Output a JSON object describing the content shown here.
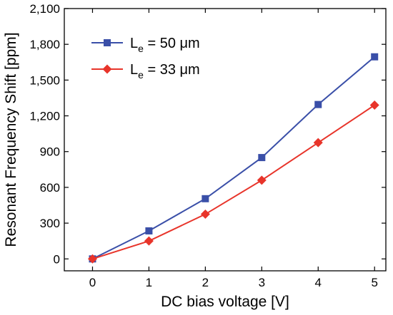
{
  "chart_data": {
    "type": "line",
    "xlabel": "DC bias voltage [V]",
    "ylabel": "Resonant Frequency Shift [ppm]",
    "xlim": [
      -0.5,
      5.2
    ],
    "ylim": [
      -100,
      2100
    ],
    "x_ticks": [
      0,
      1,
      2,
      3,
      4,
      5
    ],
    "x_tick_labels": [
      "0",
      "1",
      "2",
      "3",
      "4",
      "5"
    ],
    "y_ticks": [
      0,
      300,
      600,
      900,
      1200,
      1500,
      1800,
      2100
    ],
    "y_tick_labels": [
      "0",
      "300",
      "600",
      "900",
      "1,200",
      "1,500",
      "1,800",
      "2,100"
    ],
    "grid": false,
    "legend_position": "top-left",
    "x": [
      0,
      1,
      2,
      3,
      4,
      5
    ],
    "series": [
      {
        "name": "Le = 50 μm",
        "label_main": "L",
        "label_sub": "e",
        "label_rest": " = 50 μm",
        "values": [
          0,
          235,
          505,
          850,
          1295,
          1695
        ],
        "color": "#3a4fa8",
        "marker": "square"
      },
      {
        "name": "Le = 33 μm",
        "label_main": "L",
        "label_sub": "e",
        "label_rest": " = 33 μm",
        "values": [
          0,
          150,
          375,
          660,
          975,
          1290
        ],
        "color": "#e8342a",
        "marker": "diamond"
      }
    ]
  }
}
